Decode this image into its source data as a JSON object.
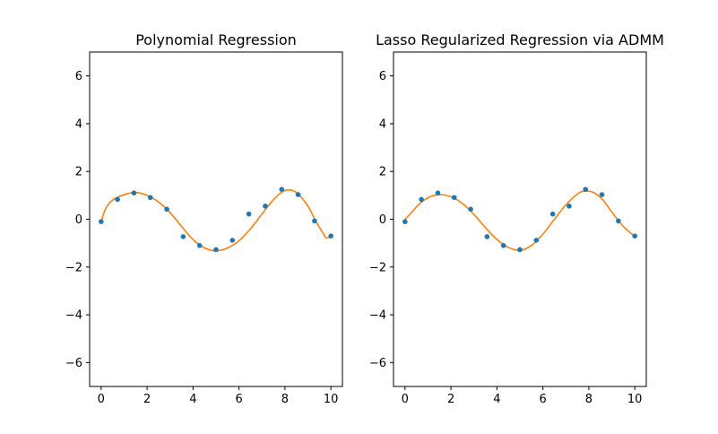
{
  "chart_data": [
    {
      "type": "scatter",
      "title": "Polynomial Regression",
      "xlabel": "",
      "ylabel": "",
      "xlim": [
        -0.5,
        10.5
      ],
      "ylim": [
        -7,
        7
      ],
      "xticks": [
        0,
        2,
        4,
        6,
        8,
        10
      ],
      "yticks": [
        6,
        4,
        2,
        0,
        -2,
        -4,
        -6
      ],
      "grid": false,
      "point_color": "#1f77b4",
      "line_color": "#ff7f0e",
      "series": [
        {
          "kind": "points",
          "x": [
            0,
            0.714,
            1.429,
            2.143,
            2.857,
            3.571,
            4.286,
            5.0,
            5.714,
            6.429,
            7.143,
            7.857,
            8.571,
            9.286,
            10.0
          ],
          "y": [
            -0.1,
            0.83,
            1.1,
            0.91,
            0.42,
            -0.73,
            -1.1,
            -1.27,
            -0.88,
            0.22,
            0.55,
            1.25,
            1.03,
            -0.07,
            -0.7
          ]
        },
        {
          "kind": "line",
          "x": [
            0,
            0.2,
            0.5,
            1.0,
            1.5,
            2.0,
            2.5,
            3.0,
            3.5,
            4.0,
            4.5,
            5.0,
            5.5,
            6.0,
            6.5,
            7.0,
            7.5,
            8.0,
            8.5,
            9.0,
            9.3,
            9.6,
            9.8,
            10.0
          ],
          "y": [
            -0.1,
            0.45,
            0.8,
            1.03,
            1.12,
            1.0,
            0.72,
            0.28,
            -0.3,
            -0.85,
            -1.2,
            -1.32,
            -1.2,
            -0.9,
            -0.4,
            0.22,
            0.82,
            1.2,
            1.12,
            0.55,
            0.0,
            -0.5,
            -0.78,
            -0.7
          ]
        }
      ]
    },
    {
      "type": "scatter",
      "title": "Lasso Regularized Regression via ADMM",
      "xlabel": "",
      "ylabel": "",
      "xlim": [
        -0.5,
        10.5
      ],
      "ylim": [
        -7,
        7
      ],
      "xticks": [
        0,
        2,
        4,
        6,
        8,
        10
      ],
      "yticks": [
        6,
        4,
        2,
        0,
        -2,
        -4,
        -6
      ],
      "grid": false,
      "point_color": "#1f77b4",
      "line_color": "#ff7f0e",
      "series": [
        {
          "kind": "points",
          "x": [
            0,
            0.714,
            1.429,
            2.143,
            2.857,
            3.571,
            4.286,
            5.0,
            5.714,
            6.429,
            7.143,
            7.857,
            8.571,
            9.286,
            10.0
          ],
          "y": [
            -0.1,
            0.83,
            1.1,
            0.91,
            0.42,
            -0.73,
            -1.1,
            -1.27,
            -0.88,
            0.22,
            0.55,
            1.25,
            1.03,
            -0.07,
            -0.7
          ]
        },
        {
          "kind": "line",
          "x": [
            0,
            0.3,
            0.6,
            1.0,
            1.4,
            1.8,
            2.2,
            2.6,
            3.0,
            3.5,
            4.0,
            4.5,
            5.0,
            5.5,
            6.0,
            6.5,
            7.0,
            7.5,
            7.8,
            8.2,
            8.6,
            9.0,
            9.5,
            10.0
          ],
          "y": [
            0.0,
            0.3,
            0.62,
            0.9,
            1.02,
            1.0,
            0.85,
            0.58,
            0.2,
            -0.35,
            -0.85,
            -1.18,
            -1.3,
            -1.1,
            -0.62,
            0.0,
            0.6,
            1.05,
            1.18,
            1.12,
            0.82,
            0.3,
            -0.3,
            -0.72
          ]
        }
      ]
    }
  ]
}
